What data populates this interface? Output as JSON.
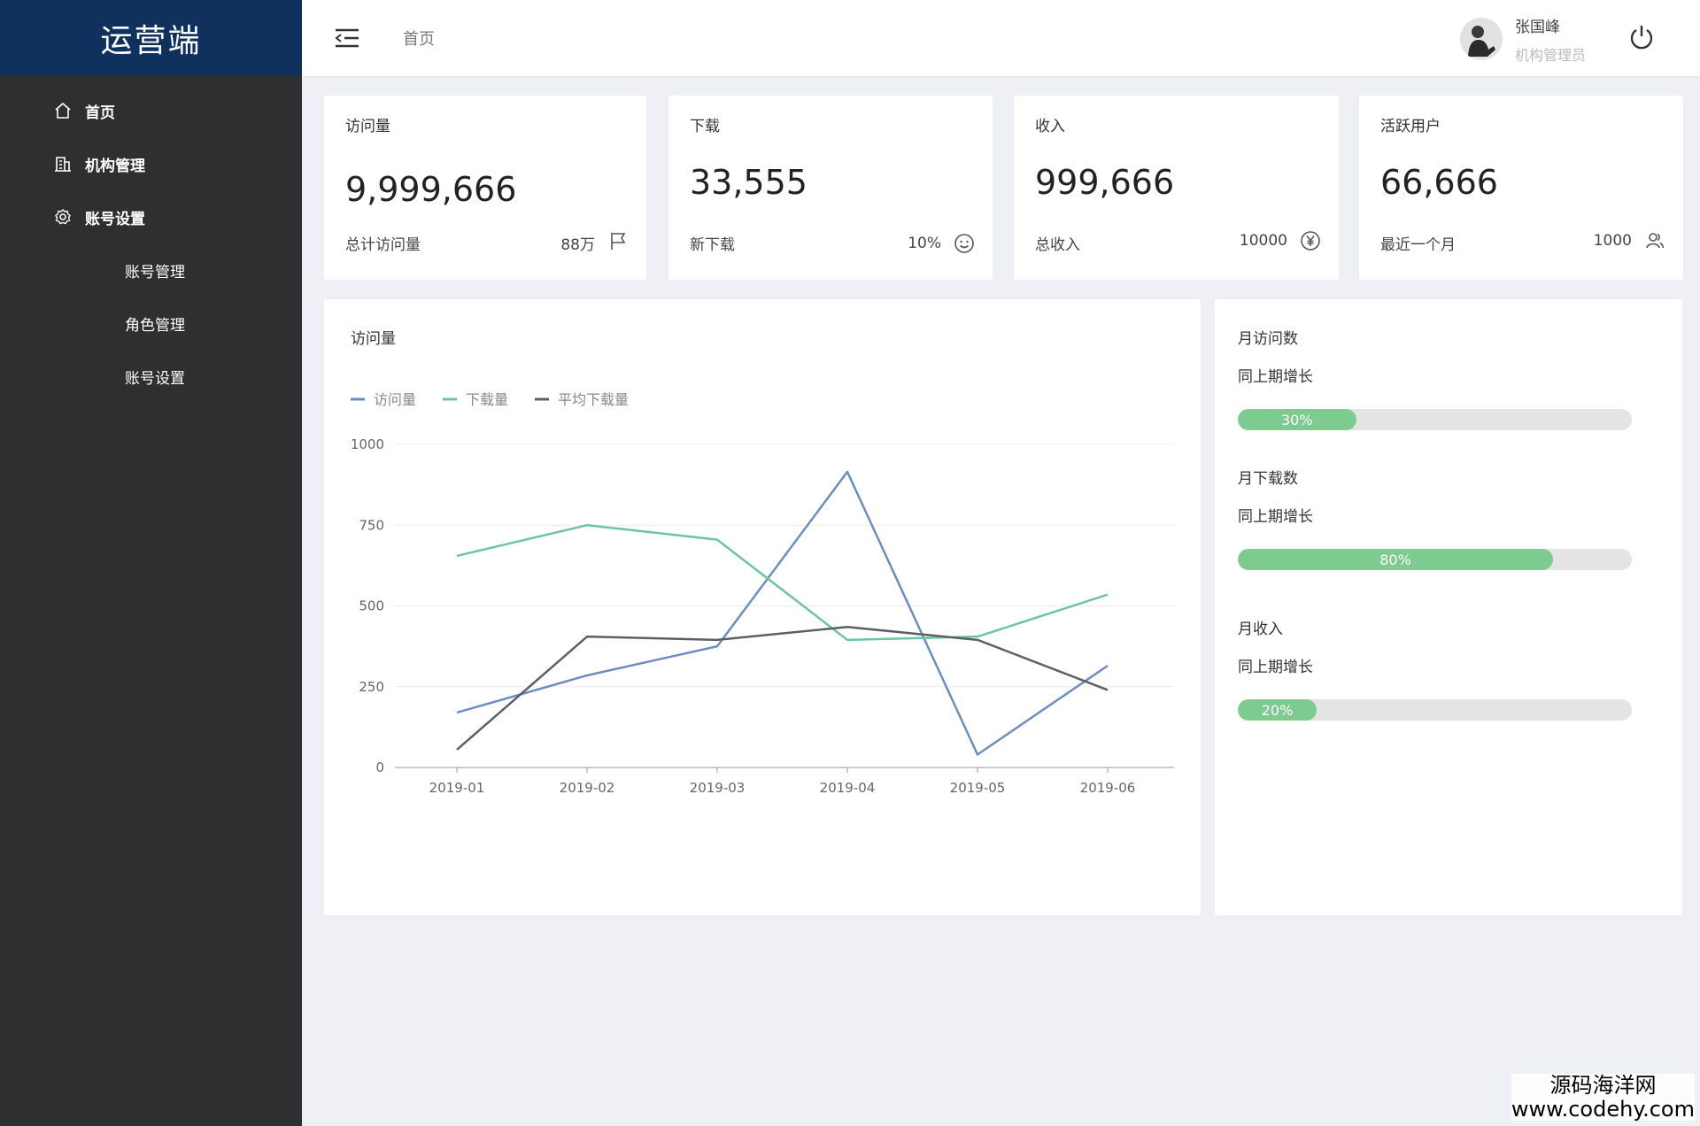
{
  "sidebar": {
    "brand": "运营端",
    "items": [
      {
        "label": "首页",
        "icon": "home-icon"
      },
      {
        "label": "机构管理",
        "icon": "building-icon"
      },
      {
        "label": "账号设置",
        "icon": "gear-icon"
      }
    ],
    "subitems": [
      {
        "label": "账号管理"
      },
      {
        "label": "角色管理"
      },
      {
        "label": "账号设置"
      }
    ]
  },
  "header": {
    "breadcrumb": "首页",
    "user_name": "张国峰",
    "user_role": "机构管理员"
  },
  "stats": [
    {
      "title": "访问量",
      "value": "9,999,666",
      "label": "总计访问量",
      "metric": "88万",
      "icon": "flag-icon"
    },
    {
      "title": "下载",
      "value": "33,555",
      "label": "新下载",
      "metric": "10%",
      "icon": "smile-icon"
    },
    {
      "title": "收入",
      "value": "999,666",
      "label": "总收入",
      "metric": "10000",
      "icon": "yen-icon"
    },
    {
      "title": "活跃用户",
      "value": "66,666",
      "label": "最近一个月",
      "metric": "1000",
      "icon": "users-icon"
    }
  ],
  "chart_data": {
    "type": "line",
    "title": "访问量",
    "categories": [
      "2019-01",
      "2019-02",
      "2019-03",
      "2019-04",
      "2019-05",
      "2019-06"
    ],
    "ylim": [
      0,
      1000
    ],
    "yticks": [
      0,
      250,
      500,
      750,
      1000
    ],
    "legend_position": "top-left",
    "grid": true,
    "series": [
      {
        "name": "访问量",
        "color": "#6c8ebf",
        "values": [
          170,
          285,
          375,
          915,
          40,
          315
        ]
      },
      {
        "name": "下载量",
        "color": "#6fc4a0",
        "values": [
          655,
          750,
          705,
          395,
          405,
          535
        ]
      },
      {
        "name": "平均下载量",
        "color": "#5b6068",
        "values": [
          55,
          405,
          395,
          435,
          395,
          240
        ]
      }
    ]
  },
  "progress": [
    {
      "title": "月访问数",
      "subtitle": "同上期增长",
      "percent": 30,
      "label": "30%"
    },
    {
      "title": "月下载数",
      "subtitle": "同上期增长",
      "percent": 80,
      "label": "80%"
    },
    {
      "title": "月收入",
      "subtitle": "同上期增长",
      "percent": 20,
      "label": "20%"
    }
  ],
  "watermark": {
    "line1": "源码海洋网",
    "line2": "www.codehy.com"
  }
}
